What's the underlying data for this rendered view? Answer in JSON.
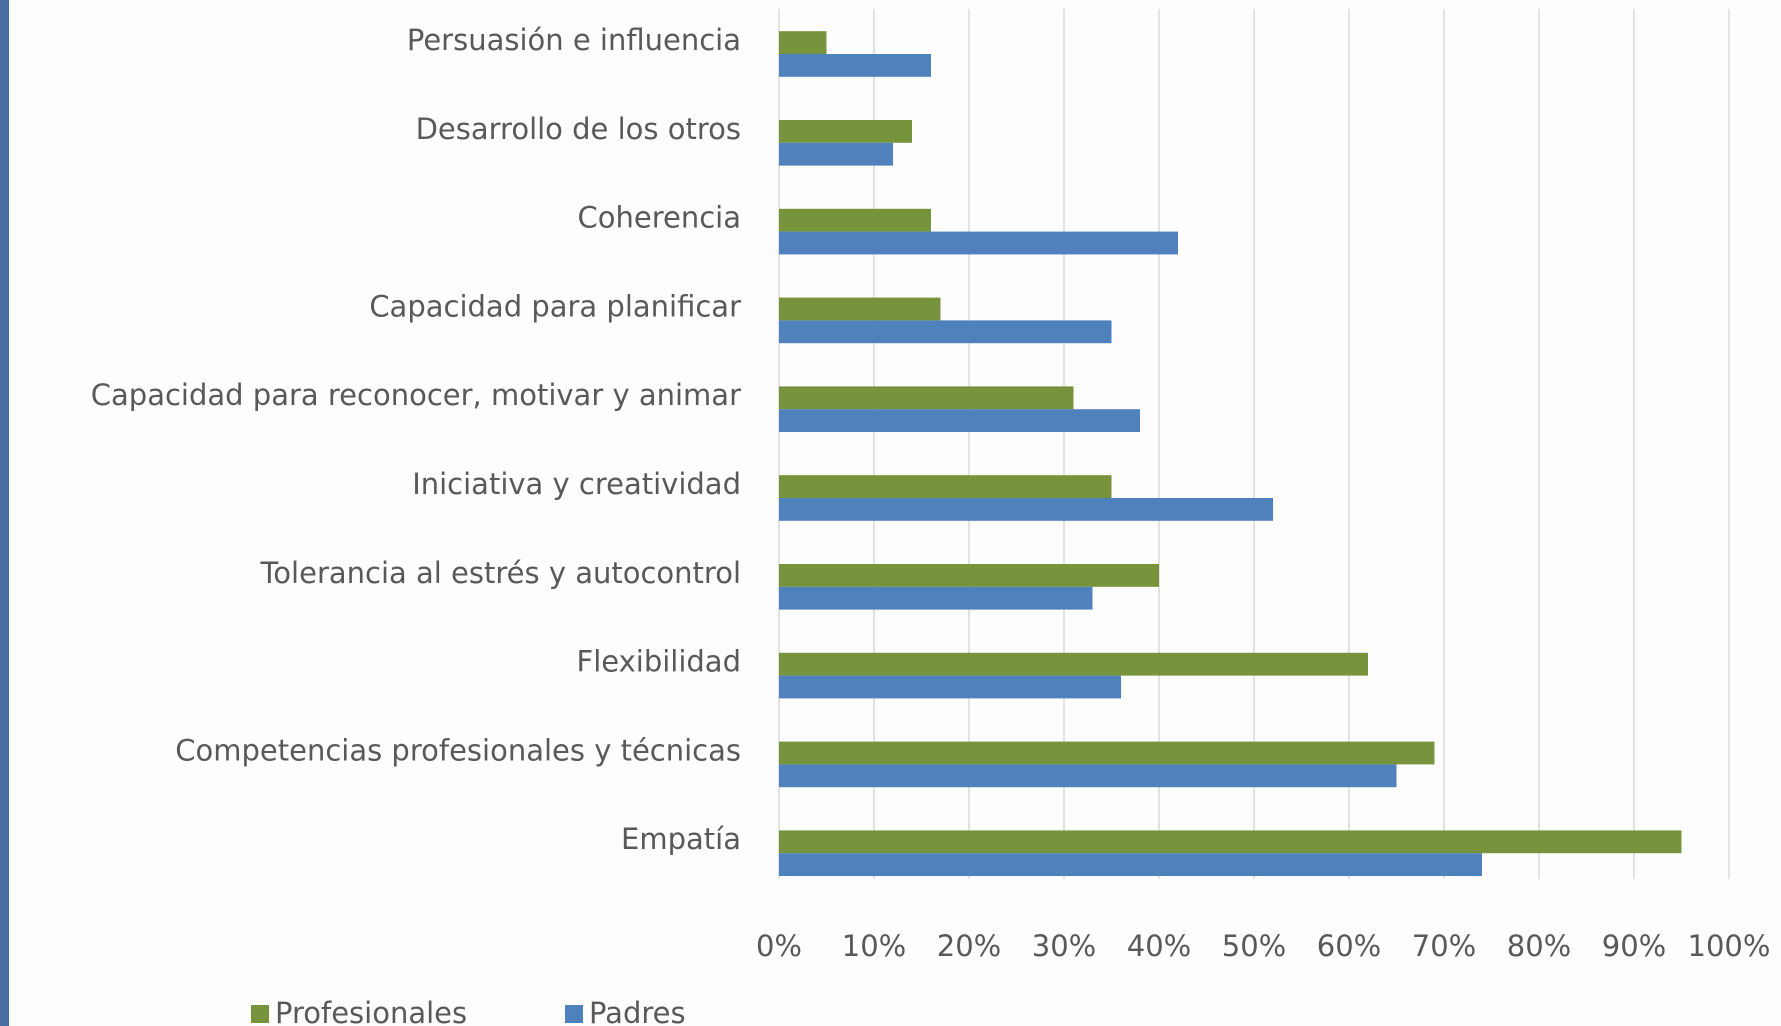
{
  "chart_data": {
    "type": "hbar",
    "categories": [
      "Persuasión e influencia",
      "Desarrollo de los otros",
      "Coherencia",
      "Capacidad para planificar",
      "Capacidad para reconocer, motivar y animar",
      "Iniciativa y creatividad",
      "Tolerancia al estrés y autocontrol",
      "Flexibilidad",
      "Competencias profesionales y técnicas",
      "Empatía"
    ],
    "series": [
      {
        "name": "Profesionales",
        "color": "#77933c",
        "values": [
          5,
          14,
          16,
          17,
          31,
          35,
          40,
          62,
          69,
          95
        ]
      },
      {
        "name": "Padres",
        "color": "#4f81bd",
        "values": [
          16,
          12,
          42,
          35,
          38,
          52,
          33,
          36,
          65,
          74
        ]
      }
    ],
    "xlim": [
      0,
      100
    ],
    "xticks": [
      {
        "value": 0,
        "label": "0%"
      },
      {
        "value": 10,
        "label": "10%"
      },
      {
        "value": 20,
        "label": "20%"
      },
      {
        "value": 30,
        "label": "30%"
      },
      {
        "value": 40,
        "label": "40%"
      },
      {
        "value": 50,
        "label": "50%"
      },
      {
        "value": 60,
        "label": "60%"
      },
      {
        "value": 70,
        "label": "70%"
      },
      {
        "value": 80,
        "label": "80%"
      },
      {
        "value": 90,
        "label": "90%"
      },
      {
        "value": 100,
        "label": "100%"
      }
    ],
    "grid": true,
    "legend": "bottom"
  }
}
